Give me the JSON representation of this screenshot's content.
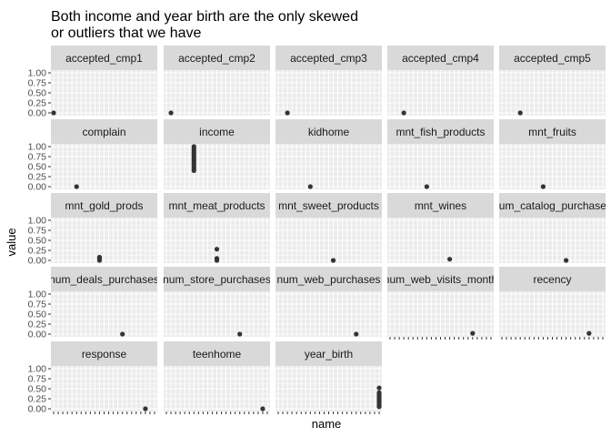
{
  "chart_data": {
    "type": "scatter",
    "title_lines": [
      "Both income and year birth are the only skewed",
      "or outliers that we have"
    ],
    "xlabel": "name",
    "ylabel": "value",
    "ylim": [
      0,
      1
    ],
    "y_ticks": [
      "1.00",
      "0.75",
      "0.50",
      "0.25",
      "0.00"
    ],
    "y_tick_values": [
      1,
      0.75,
      0.5,
      0.25,
      0
    ],
    "x_categories_count": 23,
    "facet_columns": 5,
    "grid": true,
    "point_color": "#333333",
    "panel_background": "#ebebeb",
    "strip_background": "#d9d9d9",
    "facets": [
      {
        "name": "accepted_cmp1",
        "cat_index": 0,
        "values": [
          0
        ]
      },
      {
        "name": "accepted_cmp2",
        "cat_index": 1,
        "values": [
          0
        ]
      },
      {
        "name": "accepted_cmp3",
        "cat_index": 2,
        "values": [
          0
        ]
      },
      {
        "name": "accepted_cmp4",
        "cat_index": 3,
        "values": [
          0
        ]
      },
      {
        "name": "accepted_cmp5",
        "cat_index": 4,
        "values": [
          0
        ]
      },
      {
        "name": "complain",
        "cat_index": 5,
        "values": [
          0
        ]
      },
      {
        "name": "income",
        "cat_index": 6,
        "values": [
          0.4,
          0.45,
          0.5,
          0.55,
          0.6,
          0.65,
          0.7,
          0.75,
          0.8,
          0.85,
          0.9,
          0.95,
          1.0
        ]
      },
      {
        "name": "kidhome",
        "cat_index": 7,
        "values": [
          0
        ]
      },
      {
        "name": "mnt_fish_products",
        "cat_index": 8,
        "values": [
          0
        ]
      },
      {
        "name": "mnt_fruits",
        "cat_index": 9,
        "values": [
          0
        ]
      },
      {
        "name": "mnt_gold_prods",
        "cat_index": 10,
        "values": [
          0,
          0.05,
          0.08
        ]
      },
      {
        "name": "mnt_meat_products",
        "cat_index": 11,
        "values": [
          0,
          0.05,
          0.28
        ]
      },
      {
        "name": "mnt_sweet_products",
        "cat_index": 12,
        "values": [
          0
        ]
      },
      {
        "name": "mnt_wines",
        "cat_index": 13,
        "values": [
          0.03
        ]
      },
      {
        "name": "num_catalog_purchases",
        "cat_index": 14,
        "values": [
          0
        ]
      },
      {
        "name": "num_deals_purchases",
        "cat_index": 15,
        "values": [
          0
        ]
      },
      {
        "name": "num_store_purchases",
        "cat_index": 16,
        "values": [
          0
        ]
      },
      {
        "name": "num_web_purchases",
        "cat_index": 17,
        "values": [
          0
        ]
      },
      {
        "name": "num_web_visits_month",
        "cat_index": 18,
        "values": [
          0.02
        ]
      },
      {
        "name": "recency",
        "cat_index": 19,
        "values": [
          0.02
        ]
      },
      {
        "name": "response",
        "cat_index": 20,
        "values": [
          0
        ]
      },
      {
        "name": "teenhome",
        "cat_index": 21,
        "values": [
          0
        ]
      },
      {
        "name": "year_birth",
        "cat_index": 22,
        "values": [
          0.05,
          0.1,
          0.15,
          0.2,
          0.25,
          0.3,
          0.35,
          0.4,
          0.52
        ]
      }
    ]
  }
}
